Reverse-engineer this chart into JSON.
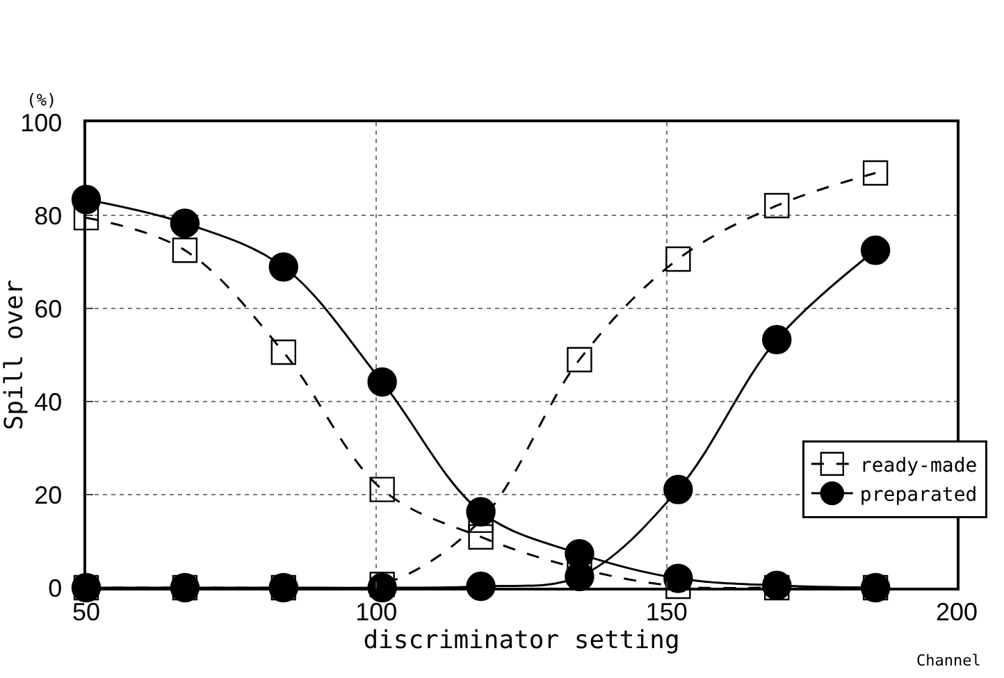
{
  "chart_data": {
    "type": "line",
    "xlabel": "discriminator setting",
    "ylabel": "Spill over",
    "annotations": [
      "(%)",
      "Channel"
    ],
    "x": [
      50,
      67,
      84,
      101,
      118,
      135,
      152,
      169,
      186
    ],
    "series": [
      {
        "name": "ready-made",
        "color": "#000000",
        "marker": "square",
        "line_style": "dashed",
        "values": [
          79.5,
          72.5,
          50.6,
          21.1,
          10.9,
          4.1,
          0.3,
          0,
          0
        ]
      },
      {
        "color": "#000000",
        "marker": "square",
        "line_style": "dashed",
        "values": [
          0,
          0,
          0,
          0.7,
          14.5,
          49,
          70.6,
          82.1,
          89.1
        ]
      },
      {
        "name": "preparated",
        "color": "#000000",
        "marker": "circle",
        "line_style": "solid",
        "values": [
          83.4,
          78.3,
          68.9,
          44.2,
          16.3,
          7.3,
          2.0,
          0.5,
          0
        ]
      },
      {
        "color": "#000000",
        "marker": "circle",
        "line_style": "solid",
        "values": [
          0,
          0,
          0,
          0,
          0.3,
          2.4,
          21.1,
          53.3,
          72.5
        ]
      }
    ],
    "xlim": [
      50,
      200
    ],
    "xticks": [
      50,
      100,
      150,
      200
    ],
    "ylim": [
      0,
      100
    ],
    "yticks": [
      0,
      20,
      40,
      60,
      80,
      100
    ],
    "grid": true,
    "legend": "bottom right"
  }
}
